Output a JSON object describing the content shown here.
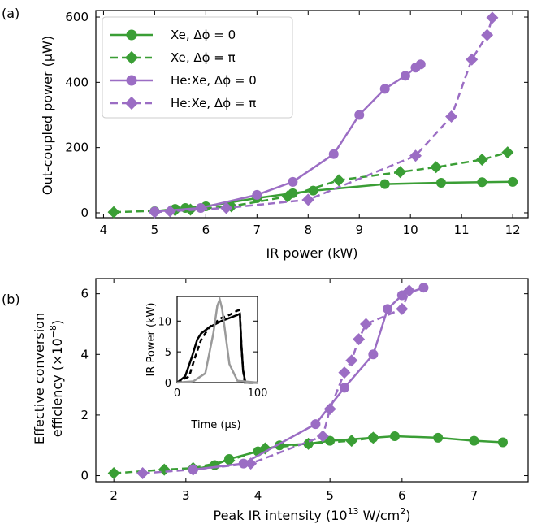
{
  "colors": {
    "xe": "#3a9e35",
    "hexe": "#9b6dc4",
    "inset_gray": "#9a9a9a",
    "black": "#000000"
  },
  "chart_data": [
    {
      "panel_label": "(a)",
      "type": "line",
      "xlabel": "IR power (kW)",
      "ylabel": "Out-coupled power (μW)",
      "xlim": [
        3.85,
        12.3
      ],
      "ylim": [
        -15,
        620
      ],
      "xticks": [
        "4",
        "5",
        "6",
        "7",
        "8",
        "9",
        "10",
        "11",
        "12"
      ],
      "yticks": [
        "0",
        "200",
        "400",
        "600"
      ],
      "legend_position": "top-left",
      "series": [
        {
          "name": "Xe,  Δϕ = 0",
          "color": "#3a9e35",
          "dash": false,
          "marker": "circle",
          "x": [
            5.0,
            5.4,
            5.6,
            6.0,
            7.0,
            7.7,
            8.1,
            9.5,
            10.6,
            11.4,
            12.0
          ],
          "y": [
            5,
            12,
            15,
            20,
            45,
            60,
            68,
            88,
            92,
            94,
            95
          ]
        },
        {
          "name": "Xe,  Δϕ = π",
          "color": "#3a9e35",
          "dash": true,
          "marker": "diamond",
          "x": [
            4.2,
            5.4,
            5.7,
            6.5,
            7.6,
            8.6,
            9.8,
            10.5,
            11.4,
            11.9
          ],
          "y": [
            2,
            8,
            10,
            20,
            50,
            100,
            125,
            140,
            163,
            185
          ]
        },
        {
          "name": "He:Xe,  Δϕ = 0",
          "color": "#9b6dc4",
          "dash": false,
          "marker": "circle",
          "x": [
            5.0,
            5.9,
            7.0,
            7.7,
            8.5,
            9.0,
            9.5,
            9.9,
            10.1,
            10.2
          ],
          "y": [
            4,
            15,
            55,
            95,
            180,
            300,
            380,
            420,
            445,
            455
          ]
        },
        {
          "name": "He:Xe,  Δϕ = π",
          "color": "#9b6dc4",
          "dash": true,
          "marker": "diamond",
          "x": [
            5.0,
            5.3,
            6.4,
            8.0,
            10.1,
            10.8,
            11.2,
            11.5,
            11.6
          ],
          "y": [
            2,
            5,
            15,
            40,
            175,
            295,
            470,
            545,
            598
          ]
        }
      ]
    },
    {
      "panel_label": "(b)",
      "type": "line",
      "xlabel_main": "Peak IR intensity (10",
      "xlabel_sup": "13",
      "xlabel_tail": " W/cm",
      "xlabel_sup2": "2",
      "xlabel_end": ")",
      "ylabel_line1": "Effective conversion",
      "ylabel_line2": "efficiency (×10",
      "ylabel_sup": "−8",
      "ylabel_end": ")",
      "xlim": [
        1.75,
        7.75
      ],
      "ylim": [
        -0.2,
        6.5
      ],
      "xticks": [
        "2",
        "3",
        "4",
        "5",
        "6",
        "7"
      ],
      "yticks": [
        "0",
        "2",
        "4",
        "6"
      ],
      "series": [
        {
          "name": "Xe,  Δϕ = 0",
          "color": "#3a9e35",
          "dash": false,
          "marker": "circle",
          "x": [
            3.1,
            3.4,
            3.6,
            4.0,
            4.3,
            4.7,
            5.0,
            5.6,
            5.9,
            6.5,
            7.0,
            7.4
          ],
          "y": [
            0.2,
            0.35,
            0.55,
            0.8,
            1.0,
            1.05,
            1.15,
            1.25,
            1.3,
            1.25,
            1.15,
            1.1
          ]
        },
        {
          "name": "Xe,  Δϕ = π",
          "color": "#3a9e35",
          "dash": true,
          "marker": "diamond",
          "x": [
            2.0,
            2.7,
            3.1,
            3.6,
            4.1,
            4.7,
            5.3,
            5.6
          ],
          "y": [
            0.08,
            0.2,
            0.25,
            0.5,
            0.9,
            1.05,
            1.15,
            1.25
          ]
        },
        {
          "name": "He:Xe,  Δϕ = 0",
          "color": "#9b6dc4",
          "dash": false,
          "marker": "circle",
          "x": [
            3.1,
            3.8,
            4.8,
            5.2,
            5.6,
            5.8,
            6.0,
            6.3
          ],
          "y": [
            0.2,
            0.4,
            1.7,
            2.9,
            4.0,
            5.5,
            5.95,
            6.2
          ]
        },
        {
          "name": "He:Xe,  Δϕ = π",
          "color": "#9b6dc4",
          "dash": true,
          "marker": "diamond",
          "x": [
            2.4,
            3.1,
            3.9,
            4.9,
            5.0,
            5.2,
            5.3,
            5.4,
            5.5,
            6.0,
            6.1
          ],
          "y": [
            0.08,
            0.2,
            0.4,
            1.3,
            2.2,
            3.4,
            3.8,
            4.5,
            5.0,
            5.5,
            6.1
          ]
        }
      ]
    },
    {
      "panel_label": "inset",
      "type": "line",
      "xlabel": "Time (μs)",
      "ylabel": "IR Power (kW)",
      "xlim": [
        0,
        100
      ],
      "ylim": [
        0,
        14
      ],
      "xticks": [
        "0",
        "100"
      ],
      "yticks": [
        "0",
        "5",
        "10"
      ],
      "series": [
        {
          "color": "#000000",
          "dash": false,
          "x": [
            0,
            10,
            18,
            25,
            30,
            40,
            55,
            65,
            75,
            78,
            80,
            82,
            85,
            100
          ],
          "y": [
            0,
            1,
            4,
            7,
            8,
            9,
            10,
            10.5,
            11,
            11.2,
            6,
            2,
            0,
            0
          ]
        },
        {
          "color": "#000000",
          "dash": true,
          "x": [
            0,
            15,
            22,
            30,
            40,
            55,
            65,
            75,
            78,
            80,
            82,
            84,
            100
          ],
          "y": [
            0,
            1,
            4,
            7,
            9,
            10.5,
            11,
            11.7,
            11.8,
            6,
            2,
            0,
            0
          ]
        },
        {
          "color": "#9a9a9a",
          "dash": false,
          "x": [
            0,
            20,
            35,
            45,
            50,
            53,
            56,
            60,
            65,
            75,
            100
          ],
          "y": [
            0,
            0.2,
            1.5,
            8,
            12.5,
            13.5,
            12,
            8,
            3,
            0.3,
            0
          ]
        }
      ]
    }
  ]
}
